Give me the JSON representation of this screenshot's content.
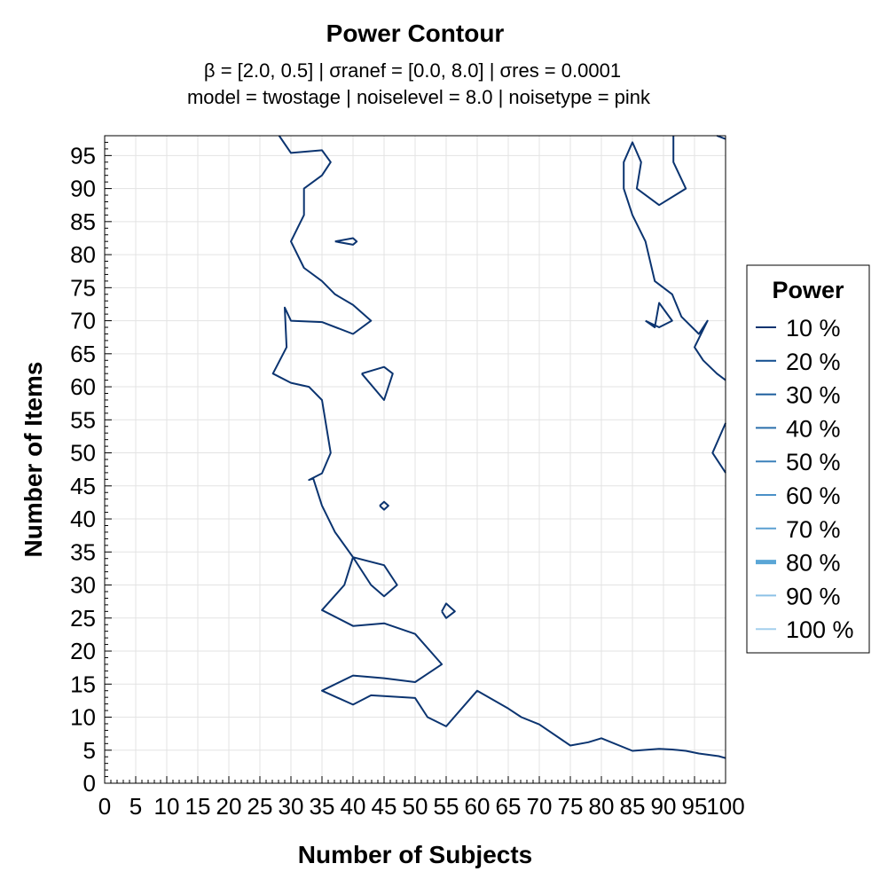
{
  "chart_data": {
    "type": "contour",
    "title": "Power Contour",
    "subtitle_lines": [
      "β = [2.0, 0.5]   |   σranef = [0.0, 8.0]   |   σres = 0.0001",
      "model = twostage   |   noiselevel = 8.0   |   noisetype = pink"
    ],
    "xlabel": "Number of Subjects",
    "ylabel": "Number of Items",
    "xlim": [
      0,
      100
    ],
    "ylim": [
      0,
      98
    ],
    "xticks": [
      0,
      5,
      10,
      15,
      20,
      25,
      30,
      35,
      40,
      45,
      50,
      55,
      60,
      65,
      70,
      75,
      80,
      85,
      90,
      95,
      100
    ],
    "xtick_labels": [
      "0",
      "5",
      "10",
      "15",
      "20",
      "25",
      "30",
      "35",
      "40",
      "45",
      "50",
      "55",
      "60",
      "65",
      "70",
      "75",
      "80",
      "85",
      "90",
      "95",
      "100"
    ],
    "yticks": [
      0,
      5,
      10,
      15,
      20,
      25,
      30,
      35,
      40,
      45,
      50,
      55,
      60,
      65,
      70,
      75,
      80,
      85,
      90,
      95
    ],
    "ytick_labels": [
      "0",
      "5",
      "10",
      "15",
      "20",
      "25",
      "30",
      "35",
      "40",
      "45",
      "50",
      "55",
      "60",
      "65",
      "70",
      "75",
      "80",
      "85",
      "90",
      "95"
    ],
    "grid": true,
    "legend": {
      "title": "Power",
      "position": "right",
      "entries": [
        {
          "label": "10 %",
          "color": "#0b3470",
          "emphasis": false
        },
        {
          "label": "20 %",
          "color": "#0f4b8d",
          "emphasis": false
        },
        {
          "label": "30 %",
          "color": "#1a5d9c",
          "emphasis": false
        },
        {
          "label": "40 %",
          "color": "#2a6fab",
          "emphasis": false
        },
        {
          "label": "50 %",
          "color": "#3a80ba",
          "emphasis": false
        },
        {
          "label": "60 %",
          "color": "#4a90c7",
          "emphasis": false
        },
        {
          "label": "70 %",
          "color": "#5a9fd1",
          "emphasis": false
        },
        {
          "label": "80 %",
          "color": "#5aa6d6",
          "emphasis": true
        },
        {
          "label": "90 %",
          "color": "#8cc1e6",
          "emphasis": false
        },
        {
          "label": "100 %",
          "color": "#a4cfed",
          "emphasis": false
        }
      ]
    },
    "series": [
      {
        "level": "10 %",
        "x": [
          100.0,
          98.9,
          95.7,
          93.6,
          91.4,
          89.3,
          85.0,
          80.0,
          77.9,
          75.0,
          70.0,
          67.1,
          65.0,
          60.0,
          55.0,
          52.0,
          50.0,
          42.9,
          40.0,
          35.0,
          40.0,
          45.0,
          50.0,
          54.3,
          50.0,
          45.0,
          40.0,
          35.0,
          38.6,
          40.0,
          42.9,
          45.0,
          47.1,
          45.0,
          40.0,
          37.1,
          35.0,
          33.6,
          32.9,
          35.0,
          36.4,
          35.7,
          35.0,
          32.9,
          30.0,
          27.1,
          29.3,
          29.0,
          30.0,
          35.0,
          40.0,
          42.9,
          40.0,
          37.1,
          35.0,
          32.1,
          30.0,
          32.1,
          32.1,
          35.0,
          36.4,
          35.0,
          30.0,
          28.1
        ],
        "y": [
          3.8,
          4.1,
          4.5,
          4.9,
          5.1,
          5.2,
          4.9,
          6.8,
          6.2,
          5.7,
          8.9,
          10.0,
          11.3,
          14.0,
          8.6,
          10.0,
          12.9,
          13.3,
          11.9,
          14.0,
          16.3,
          15.9,
          15.3,
          18.0,
          22.6,
          24.2,
          23.8,
          26.2,
          30.0,
          34.2,
          30.0,
          28.3,
          30.0,
          33.0,
          34.2,
          38.0,
          42.0,
          46.1,
          45.9,
          46.9,
          50.0,
          54.0,
          58.0,
          60.0,
          60.6,
          62.0,
          66.0,
          72.0,
          70.0,
          69.8,
          68.0,
          70.0,
          72.4,
          74.0,
          76.0,
          78.0,
          82.0,
          86.0,
          90.0,
          92.0,
          94.0,
          95.8,
          95.4,
          98.0
        ]
      },
      {
        "level": "10 %",
        "x": [
          100.0,
          97.9,
          100.0
        ],
        "y": [
          54.5,
          50.0,
          47.0
        ]
      },
      {
        "level": "10 %",
        "x": [
          100.0,
          98.6,
          96.4,
          95.0,
          97.1,
          95.7,
          92.9,
          91.4,
          88.6,
          87.1,
          85.0,
          83.6,
          83.6,
          85.0,
          86.4,
          85.7,
          85.7,
          89.3,
          93.6,
          91.6,
          91.6
        ],
        "y": [
          61.0,
          62.0,
          64.0,
          66.0,
          70.0,
          68.0,
          70.6,
          74.0,
          76.0,
          82.0,
          86.0,
          90.0,
          94.0,
          97.0,
          94.0,
          90.0,
          90.0,
          87.5,
          90.0,
          94.0,
          98.0
        ]
      },
      {
        "level": "10 %",
        "x": [
          98.6,
          100.0
        ],
        "y": [
          98.0,
          97.5
        ]
      },
      {
        "level": "10 %",
        "x": [
          87.1,
          88.6,
          89.3,
          91.4,
          89.3,
          87.1
        ],
        "y": [
          70.0,
          69.0,
          72.7,
          70.0,
          69.0,
          70.0
        ]
      },
      {
        "level": "10 %",
        "x": [
          37.1,
          40.0,
          40.6,
          40.0,
          37.1
        ],
        "y": [
          82.0,
          82.5,
          82.0,
          81.5,
          82.0
        ]
      },
      {
        "level": "10 %",
        "x": [
          41.4,
          45.0,
          46.4,
          45.0,
          41.4
        ],
        "y": [
          62.0,
          63.0,
          62.0,
          58.0,
          62.0
        ]
      },
      {
        "level": "10 %",
        "x": [
          44.3,
          45.0,
          45.7,
          45.0,
          44.3
        ],
        "y": [
          42.0,
          42.6,
          42.0,
          41.4,
          42.0
        ]
      },
      {
        "level": "10 %",
        "x": [
          54.3,
          55.0,
          56.4,
          55.0,
          54.3
        ],
        "y": [
          26.0,
          27.2,
          26.0,
          25.0,
          26.0
        ]
      }
    ]
  }
}
